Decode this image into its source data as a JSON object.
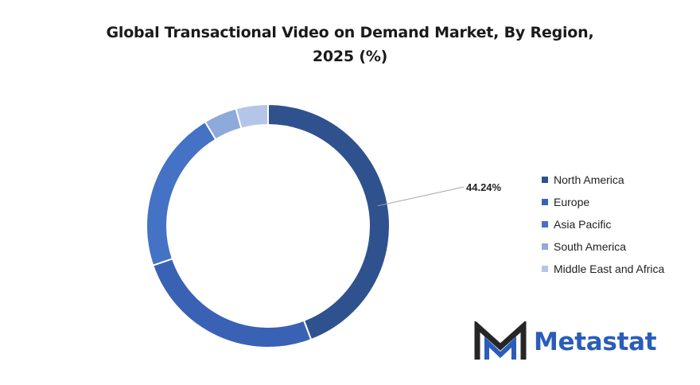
{
  "chart_data": {
    "type": "pie",
    "title": "Global Transactional Video on Demand Market, By Region,",
    "title_line2": "2025 (%)",
    "categories": [
      "North America",
      "Europe",
      "Asia Pacific",
      "South America",
      "Middle East and Africa"
    ],
    "values": [
      44.24,
      25.5,
      21.6,
      4.4,
      4.26
    ],
    "data_labels": [
      "44.24%"
    ],
    "colors": [
      "#2f528f",
      "#3a62b4",
      "#4472c4",
      "#8ea9db",
      "#b4c6e7"
    ],
    "legend_position": "right",
    "donut": true
  },
  "logo": {
    "text": "Metastat",
    "color": "#2a5db8"
  }
}
